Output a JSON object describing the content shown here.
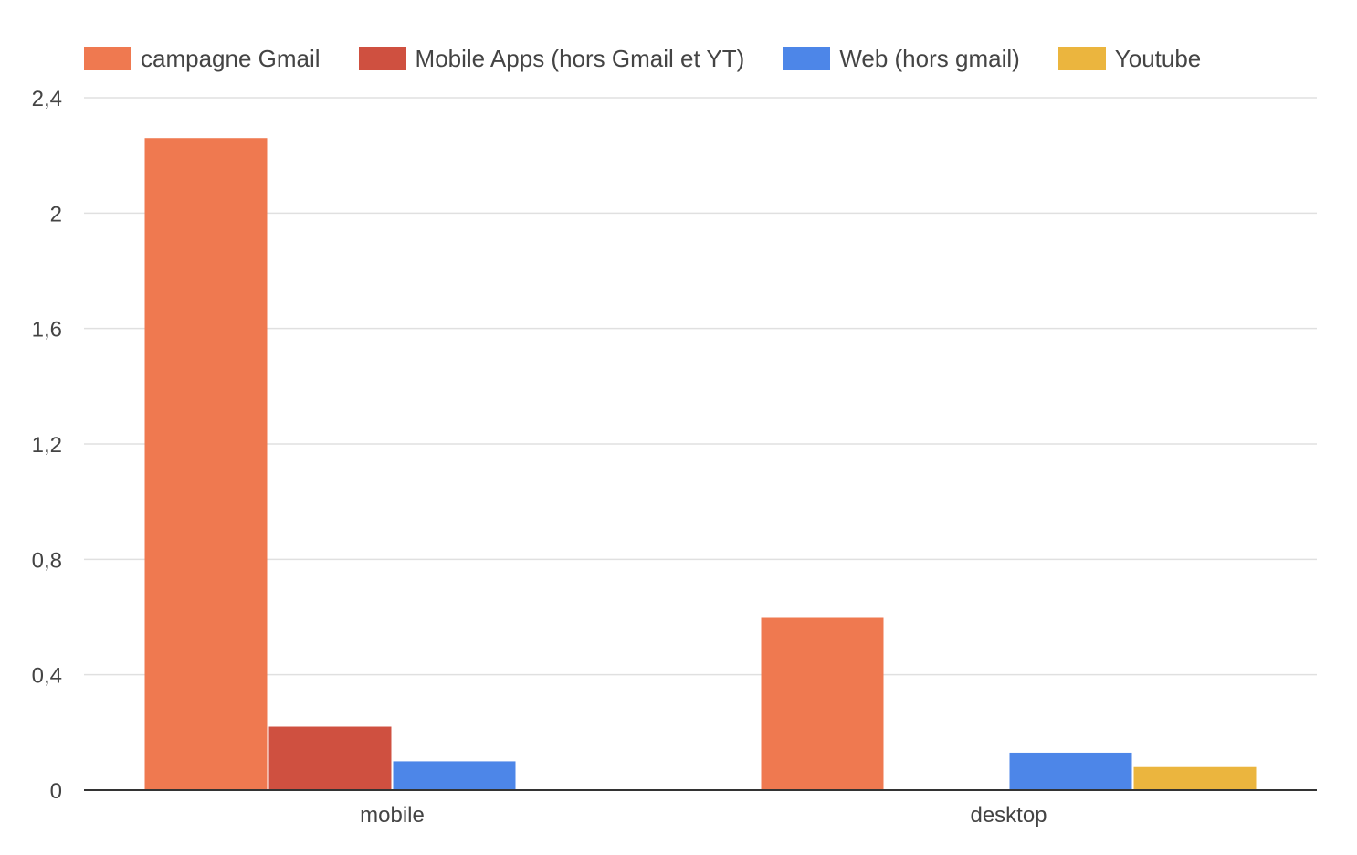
{
  "chart_data": {
    "type": "bar",
    "categories": [
      "mobile",
      "desktop"
    ],
    "series": [
      {
        "name": "campagne Gmail",
        "color": "#EF7950",
        "values": [
          2.26,
          0.6
        ]
      },
      {
        "name": "Mobile Apps (hors Gmail et YT)",
        "color": "#CF5040",
        "values": [
          0.22,
          0
        ]
      },
      {
        "name": "Web (hors gmail)",
        "color": "#4D86E8",
        "values": [
          0.1,
          0.13
        ]
      },
      {
        "name": "Youtube",
        "color": "#EBB53E",
        "values": [
          0,
          0.08
        ]
      }
    ],
    "ylim": [
      0,
      2.4
    ],
    "yticks": [
      0,
      0.4,
      0.8,
      1.2,
      1.6,
      2,
      2.4
    ],
    "ytick_labels": [
      "0",
      "0,4",
      "0,8",
      "1,2",
      "1,6",
      "2",
      "2,4"
    ],
    "legend_position": "top-left",
    "grid": true
  }
}
